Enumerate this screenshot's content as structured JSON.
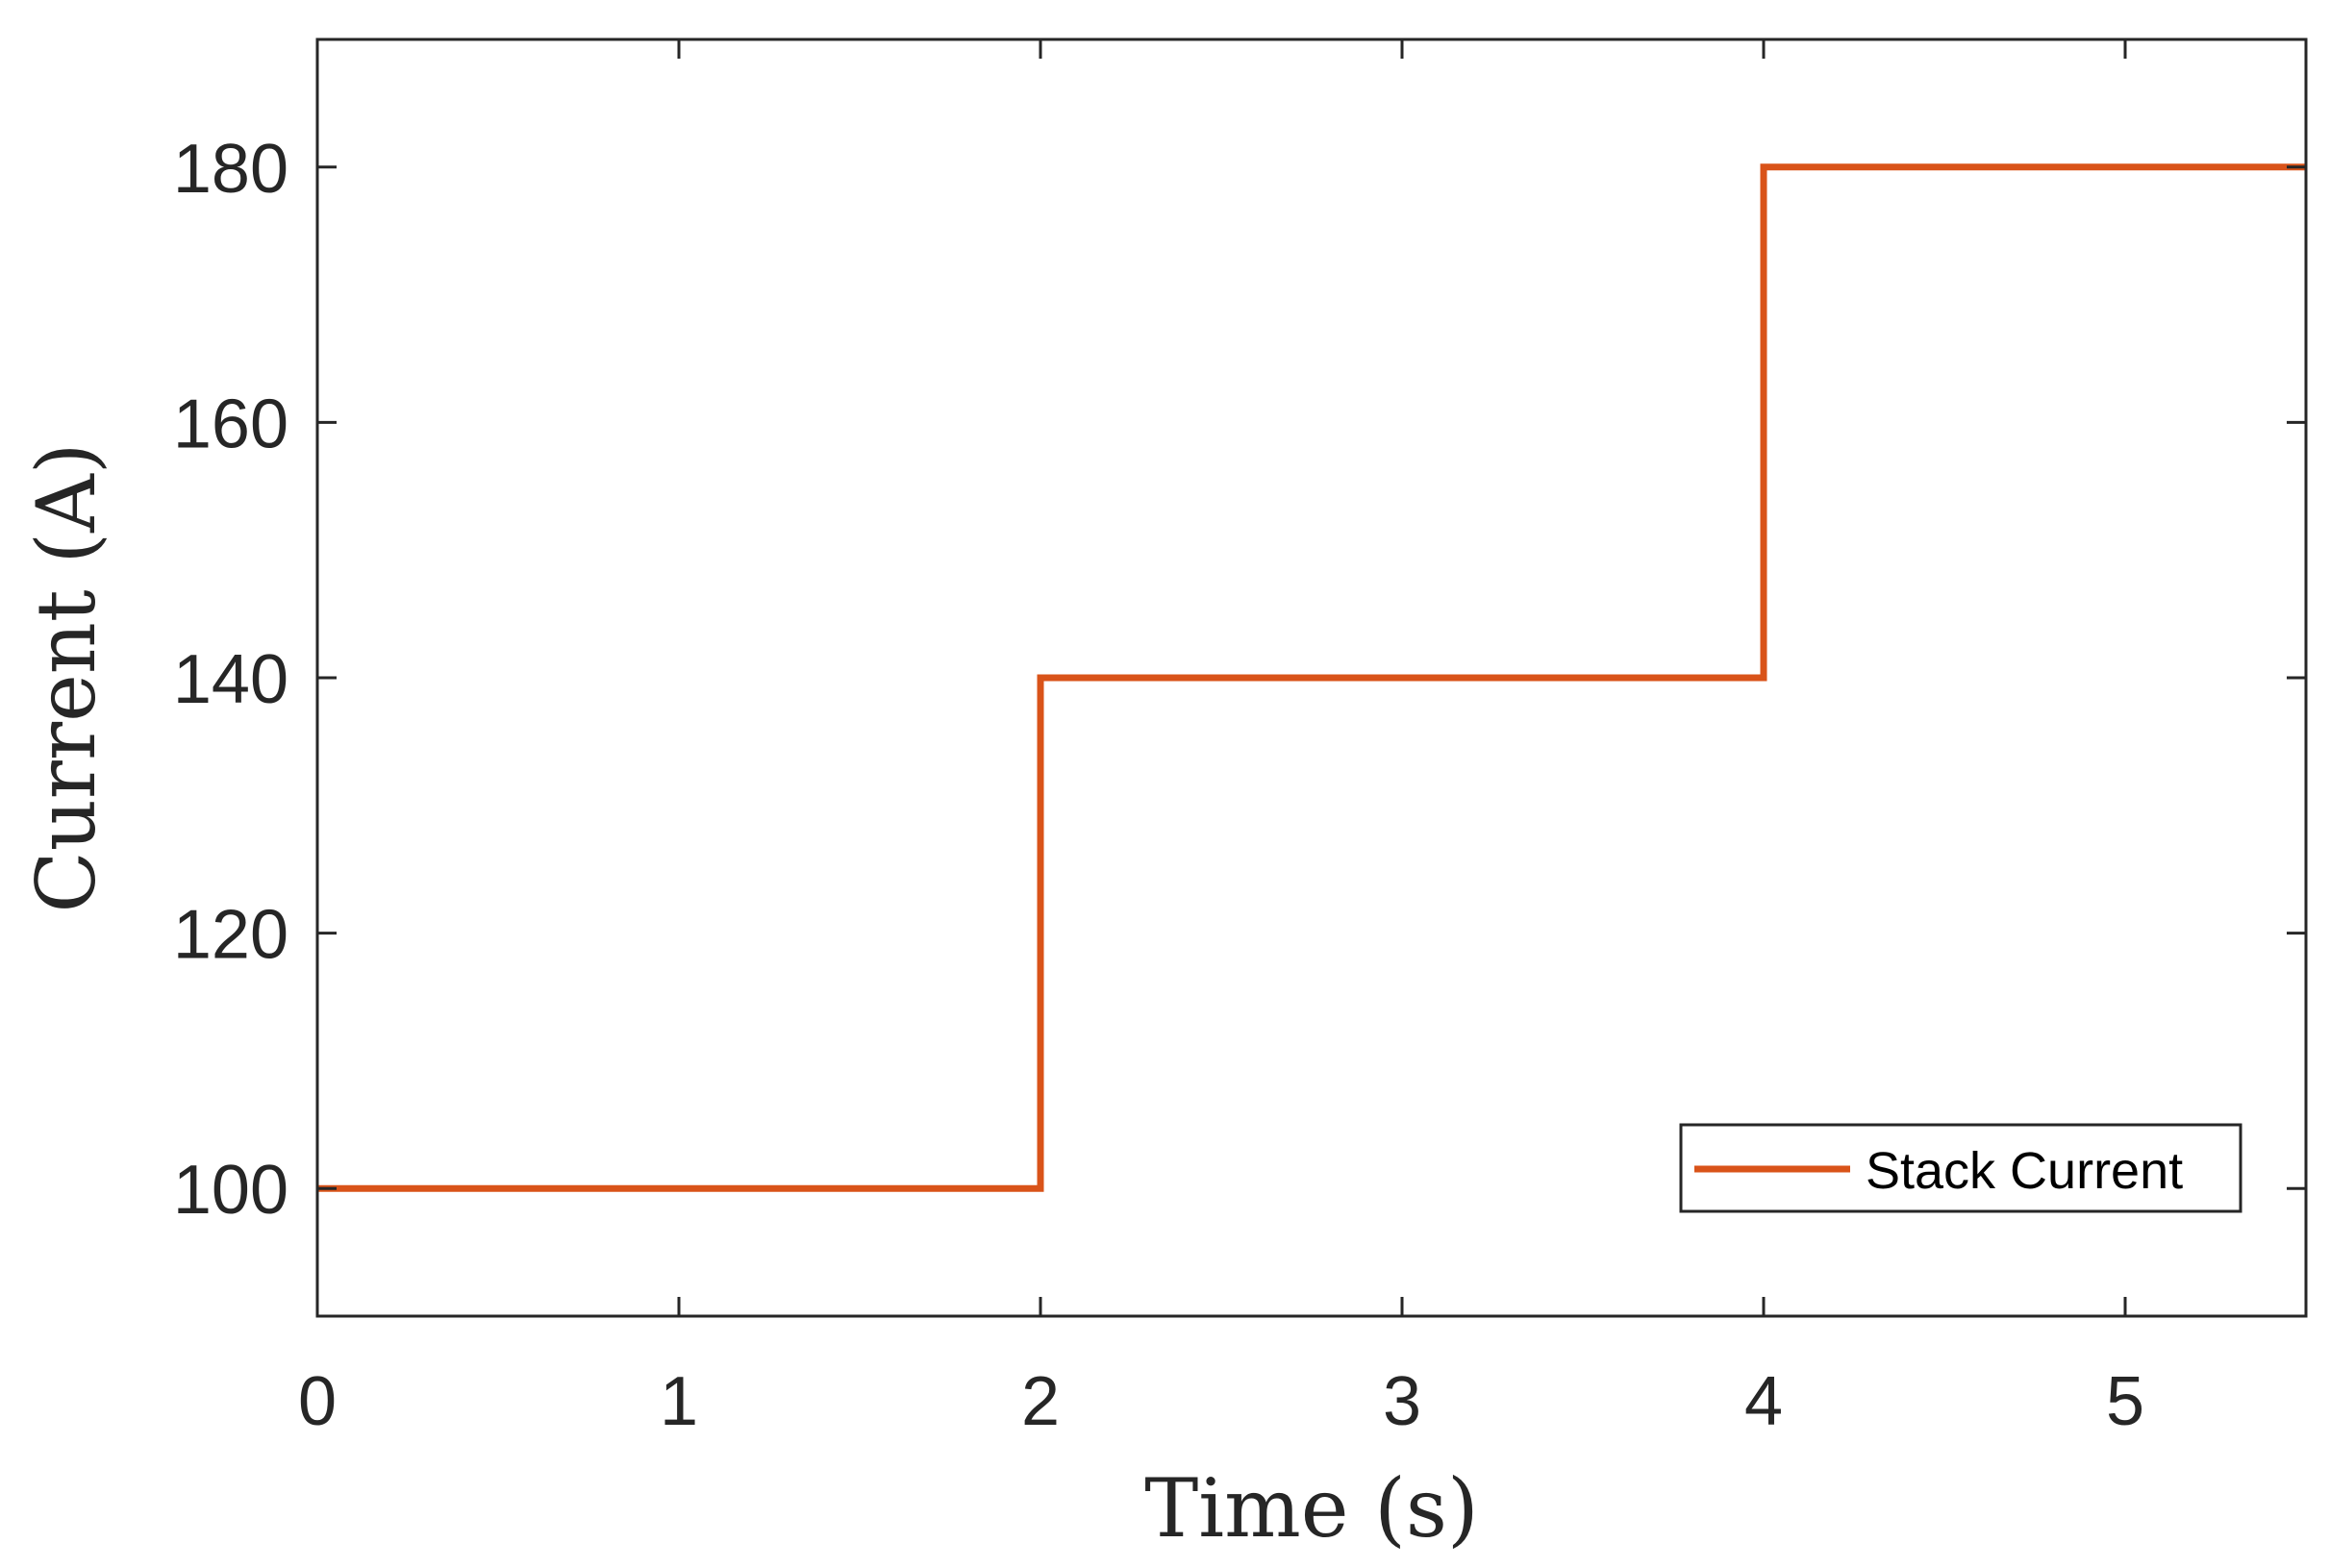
{
  "chart_data": {
    "type": "line",
    "title": "",
    "xlabel": "Time (s)",
    "ylabel": "Current (A)",
    "xlim": [
      0,
      5.5
    ],
    "ylim": [
      90,
      190
    ],
    "x_ticks": [
      0,
      1,
      2,
      3,
      4,
      5
    ],
    "y_ticks": [
      100,
      120,
      140,
      160,
      180
    ],
    "x_tick_labels": [
      "0",
      "1",
      "2",
      "3",
      "4",
      "5"
    ],
    "y_tick_labels": [
      "100",
      "120",
      "140",
      "160",
      "180"
    ],
    "grid": false,
    "legend_position": "bottom-right",
    "series": [
      {
        "name": "Stack Current",
        "color": "#D95319",
        "x": [
          0,
          2,
          2,
          4,
          4,
          5.5
        ],
        "y": [
          100,
          100,
          140,
          140,
          180,
          180
        ]
      }
    ]
  }
}
